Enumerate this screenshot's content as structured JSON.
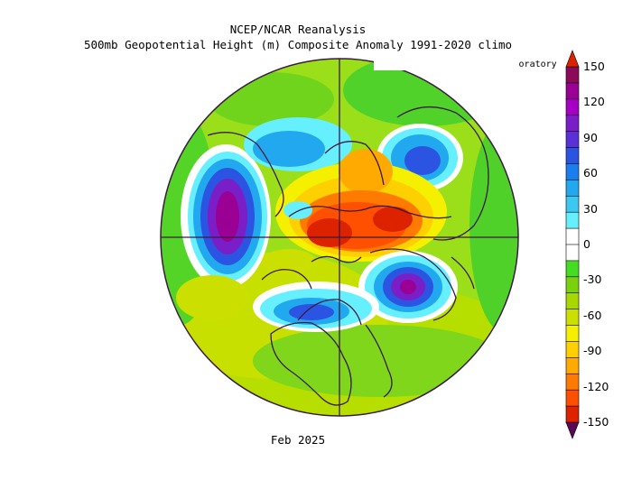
{
  "header": {
    "line1": "NCEP/NCAR Reanalysis",
    "line2": "500mb Geopotential Height (m) Composite Anomaly 1991-2020 climo"
  },
  "credit": "NOAA Physical Sciences Laboratory",
  "footer": {
    "period": "Feb 2025"
  },
  "colorbar": {
    "min": -150,
    "max": 150,
    "step": 15,
    "labels": [
      "150",
      "120",
      "90",
      "60",
      "30",
      "0",
      "-30",
      "-60",
      "-90",
      "-120",
      "-150"
    ],
    "colors": [
      "#8b0a5a",
      "#9a0094",
      "#a600c4",
      "#7a1ec8",
      "#5a30d8",
      "#2c54e2",
      "#1a7eee",
      "#22a8ee",
      "#3cc8f0",
      "#66f0ff",
      "#ffffff",
      "#ffffff",
      "#44dd22",
      "#7ad20e",
      "#a8d800",
      "#cce000",
      "#f4f000",
      "#ffd000",
      "#ffaa00",
      "#ff7a00",
      "#ff5000",
      "#dd2200"
    ]
  },
  "map": {
    "projection": "north-polar-stereographic",
    "variable": "500mb geopotential height anomaly",
    "units": "m",
    "land_outline_color": "#3a1a40"
  }
}
